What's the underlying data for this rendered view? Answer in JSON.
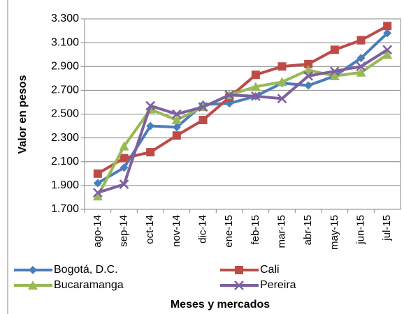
{
  "chart_data": {
    "type": "line",
    "x_label": "Meses y mercados",
    "y_label": "Valor en pesos",
    "categories": [
      "ago-14",
      "sep-14",
      "oct-14",
      "nov-14",
      "dic-14",
      "ene-15",
      "feb-15",
      "mar-15",
      "abr-15",
      "may-15",
      "jun-15",
      "jul-15"
    ],
    "series": [
      {
        "name": "Bogotá, D.C.",
        "color": "#4a7ebb",
        "marker": "diamond",
        "values": [
          1920,
          2050,
          2400,
          2390,
          2580,
          2590,
          2650,
          2760,
          2740,
          2820,
          2970,
          3180
        ]
      },
      {
        "name": "Cali",
        "color": "#be4b48",
        "marker": "square",
        "values": [
          2000,
          2130,
          2180,
          2320,
          2450,
          2640,
          2830,
          2900,
          2920,
          3040,
          3120,
          3240
        ]
      },
      {
        "name": "Bucaramanga",
        "color": "#98b954",
        "marker": "triangle",
        "values": [
          1810,
          2230,
          2540,
          2450,
          2560,
          2660,
          2730,
          2770,
          2870,
          2820,
          2850,
          3000
        ]
      },
      {
        "name": "Pereira",
        "color": "#7d60a0",
        "marker": "x",
        "values": [
          1840,
          1910,
          2570,
          2500,
          2560,
          2660,
          2650,
          2630,
          2820,
          2860,
          2900,
          3040
        ]
      }
    ],
    "ylim": [
      1700,
      3300
    ],
    "yticks": [
      {
        "value": 1700,
        "label": "1.700"
      },
      {
        "value": 1900,
        "label": "1.900"
      },
      {
        "value": 2100,
        "label": "2.100"
      },
      {
        "value": 2300,
        "label": "2.300"
      },
      {
        "value": 2500,
        "label": "2.500"
      },
      {
        "value": 2700,
        "label": "2.700"
      },
      {
        "value": 2900,
        "label": "2.900"
      },
      {
        "value": 3100,
        "label": "3.100"
      },
      {
        "value": 3300,
        "label": "3.300"
      }
    ],
    "grid": true
  }
}
